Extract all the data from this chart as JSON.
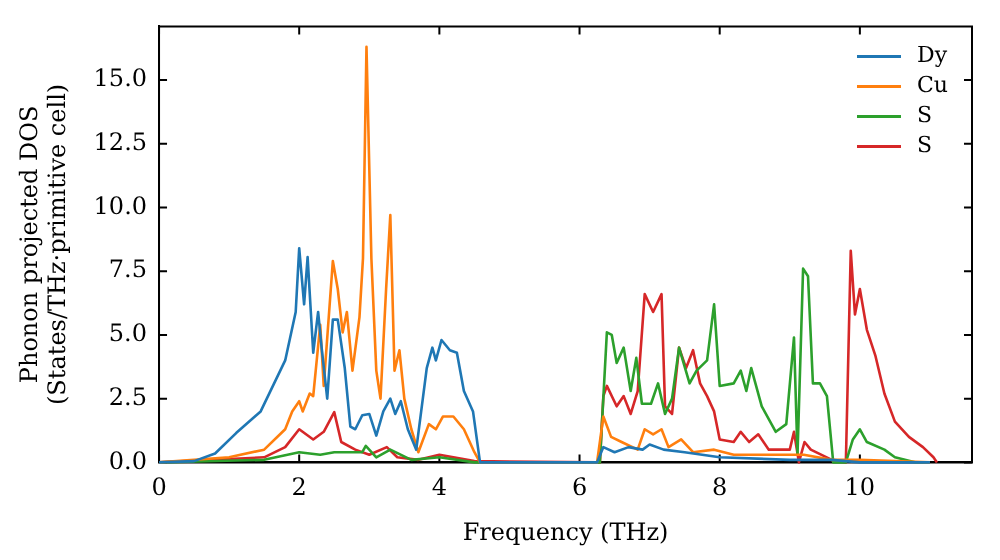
{
  "chart_data": {
    "type": "line",
    "xlabel": "Frequency (THz)",
    "ylabel": "Phonon projected DOS\n(States/THz·primitive cell)",
    "xlim": [
      0,
      11.6
    ],
    "ylim": [
      0,
      17.1
    ],
    "xticks": [
      0,
      2,
      4,
      6,
      8,
      10
    ],
    "yticks": [
      {
        "value": 0,
        "label": "0.0"
      },
      {
        "value": 2.5,
        "label": "2.5"
      },
      {
        "value": 5,
        "label": "5.0"
      },
      {
        "value": 7.5,
        "label": "7.5"
      },
      {
        "value": 10,
        "label": "10.0"
      },
      {
        "value": 12.5,
        "label": "12.5"
      },
      {
        "value": 15,
        "label": "15.0"
      }
    ],
    "legend": "top right",
    "marker": "none",
    "line_style": "solid",
    "series": [
      {
        "name": "Dy",
        "color": "#1f77b4",
        "x": [
          0,
          0.5,
          0.8,
          1.1,
          1.45,
          1.8,
          1.95,
          2.0,
          2.07,
          2.12,
          2.2,
          2.27,
          2.32,
          2.4,
          2.48,
          2.55,
          2.65,
          2.73,
          2.8,
          2.9,
          3.0,
          3.1,
          3.2,
          3.3,
          3.37,
          3.45,
          3.55,
          3.67,
          3.82,
          3.9,
          3.95,
          4.03,
          4.15,
          4.25,
          4.35,
          4.48,
          4.58,
          6.25,
          6.34,
          6.5,
          6.7,
          6.9,
          7.0,
          7.2,
          7.5,
          8.0,
          9.0,
          9.6,
          10.0,
          11.0
        ],
        "values": [
          0,
          0.05,
          0.35,
          1.15,
          2.0,
          4.0,
          5.9,
          8.4,
          6.2,
          8.05,
          4.3,
          5.9,
          4.5,
          2.5,
          5.6,
          5.6,
          3.7,
          1.4,
          1.3,
          1.85,
          1.9,
          1.05,
          2.0,
          2.5,
          1.9,
          2.4,
          1.3,
          0.5,
          3.7,
          4.5,
          4.0,
          4.8,
          4.4,
          4.3,
          2.8,
          2.0,
          0,
          0,
          0.6,
          0.4,
          0.6,
          0.5,
          0.7,
          0.5,
          0.4,
          0.2,
          0.1,
          0.1,
          0,
          0
        ]
      },
      {
        "name": "Cu",
        "color": "#ff7f0e",
        "x": [
          0,
          1.0,
          1.5,
          1.8,
          1.9,
          2.0,
          2.05,
          2.15,
          2.2,
          2.3,
          2.35,
          2.48,
          2.55,
          2.62,
          2.68,
          2.76,
          2.86,
          2.91,
          2.96,
          3.03,
          3.1,
          3.16,
          3.24,
          3.3,
          3.36,
          3.43,
          3.5,
          3.6,
          3.7,
          3.85,
          3.95,
          4.05,
          4.2,
          4.35,
          4.5,
          4.58,
          6.25,
          6.34,
          6.45,
          6.6,
          6.83,
          6.93,
          7.05,
          7.17,
          7.27,
          7.45,
          7.62,
          7.92,
          8.2,
          9.0,
          9.2,
          9.6,
          10.0,
          11.0
        ],
        "values": [
          0,
          0.2,
          0.5,
          1.3,
          2.0,
          2.4,
          2.0,
          2.7,
          2.6,
          5.4,
          3.0,
          7.9,
          6.8,
          5.1,
          5.9,
          3.6,
          5.7,
          8.0,
          16.3,
          8.0,
          3.6,
          2.5,
          6.8,
          9.7,
          3.6,
          4.4,
          2.5,
          1.3,
          0.4,
          1.5,
          1.3,
          1.8,
          1.8,
          1.3,
          0.4,
          0,
          0,
          1.8,
          1.0,
          0.8,
          0.5,
          1.3,
          1.1,
          1.3,
          0.6,
          0.9,
          0.4,
          0.5,
          0.3,
          0.3,
          0.3,
          0.1,
          0.1,
          0
        ]
      },
      {
        "name": "S",
        "color": "#2ca02c",
        "x": [
          0,
          1.5,
          2.0,
          2.3,
          2.5,
          2.9,
          2.95,
          3.1,
          3.3,
          3.6,
          4.0,
          4.5,
          6.25,
          6.29,
          6.39,
          6.46,
          6.53,
          6.63,
          6.73,
          6.81,
          6.89,
          7.02,
          7.12,
          7.22,
          7.32,
          7.42,
          7.57,
          7.67,
          7.82,
          7.92,
          8.0,
          8.2,
          8.3,
          8.38,
          8.45,
          8.6,
          8.8,
          8.95,
          9.06,
          9.11,
          9.19,
          9.26,
          9.33,
          9.43,
          9.53,
          9.62,
          9.8,
          9.9,
          10.0,
          10.1,
          10.35,
          10.5,
          10.8,
          11.0
        ],
        "values": [
          0,
          0.1,
          0.4,
          0.3,
          0.4,
          0.4,
          0.65,
          0.2,
          0.5,
          0.1,
          0.2,
          0,
          0,
          0,
          5.1,
          5.0,
          3.9,
          4.5,
          2.8,
          4.1,
          2.3,
          2.3,
          3.1,
          1.9,
          2.5,
          4.5,
          3.1,
          3.6,
          4.0,
          6.2,
          3.0,
          3.1,
          3.6,
          2.8,
          3.7,
          2.2,
          1.2,
          1.5,
          4.9,
          0.3,
          7.6,
          7.3,
          3.1,
          3.1,
          2.6,
          0,
          0,
          0.9,
          1.3,
          0.8,
          0.5,
          0.2,
          0,
          0
        ]
      },
      {
        "name": "S",
        "color": "#d62728",
        "x": [
          0,
          1.5,
          1.8,
          2.0,
          2.2,
          2.35,
          2.5,
          2.6,
          2.8,
          3.0,
          3.25,
          3.4,
          3.7,
          4.0,
          4.5,
          6.25,
          6.29,
          6.34,
          6.39,
          6.53,
          6.63,
          6.73,
          6.83,
          6.93,
          7.05,
          7.17,
          7.22,
          7.32,
          7.42,
          7.52,
          7.62,
          7.72,
          7.82,
          7.92,
          8.0,
          8.2,
          8.3,
          8.42,
          8.55,
          8.7,
          9.0,
          9.06,
          9.13,
          9.21,
          9.3,
          9.6,
          9.8,
          9.87,
          9.93,
          10.0,
          10.1,
          10.22,
          10.35,
          10.5,
          10.7,
          10.9,
          11.05,
          11.1
        ],
        "values": [
          0,
          0.2,
          0.6,
          1.3,
          0.9,
          1.2,
          1.97,
          0.8,
          0.5,
          0.3,
          0.6,
          0.2,
          0.1,
          0.3,
          0.05,
          0,
          0,
          2.6,
          3.0,
          2.2,
          2.6,
          1.9,
          2.8,
          6.6,
          5.9,
          6.6,
          2.2,
          1.9,
          4.5,
          3.7,
          4.4,
          3.1,
          2.6,
          2.0,
          0.9,
          0.8,
          1.2,
          0.8,
          1.1,
          0.5,
          0.5,
          1.2,
          0,
          0.8,
          0.5,
          0.1,
          0,
          8.3,
          5.8,
          6.8,
          5.2,
          4.2,
          2.7,
          1.6,
          1.0,
          0.6,
          0.2,
          0
        ]
      }
    ]
  }
}
